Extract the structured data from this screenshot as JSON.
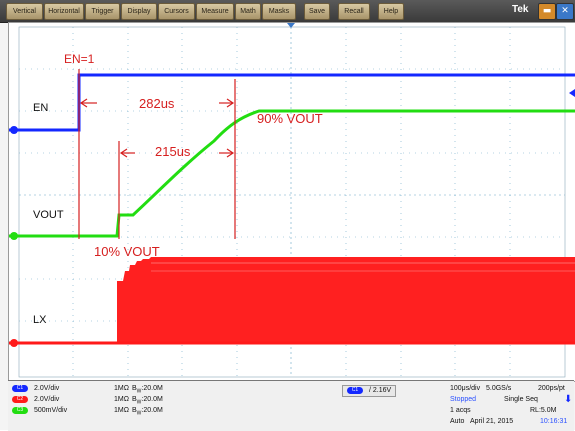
{
  "menu": [
    "Vertical",
    "Horizontal",
    "Trigger",
    "Display",
    "Cursors",
    "Measure",
    "Math",
    "Masks",
    "Save",
    "Recall",
    "Help"
  ],
  "brand": "Tek",
  "icons": [
    "minimize-icon",
    "close-x-icon"
  ],
  "annotations": {
    "en1": "EN=1",
    "t282": "282us",
    "t215": "215us",
    "v90": "90% VOUT",
    "v10": "10% VOUT"
  },
  "channel_labels": {
    "en": "EN",
    "vout": "VOUT",
    "lx": "LX"
  },
  "channels": [
    {
      "badge": "C1",
      "scale": "2.0V/div",
      "imp": "1MΩ",
      "bw": "20.0M",
      "color": "#1428ff"
    },
    {
      "badge": "C2",
      "scale": "2.0V/div",
      "imp": "1MΩ",
      "bw": "20.0M",
      "color": "#ff1a1a"
    },
    {
      "badge": "C3",
      "scale": "500mV/div",
      "imp": "1MΩ",
      "bw": "20.0M",
      "color": "#22dd11"
    }
  ],
  "bw_prefix": "B",
  "bw_sub": "W",
  "trigger": {
    "badge": "C1",
    "slope": "/",
    "level": "2.16V"
  },
  "acq": {
    "timebase": "100μs/div",
    "rate": "5.0GS/s",
    "res": "200ps/pt",
    "state": "Stopped",
    "mode": "Single Seq",
    "acqs": "1 acqs",
    "rl": "RL:5.0M",
    "trig_mode": "Auto",
    "date": "April 21, 2015",
    "time": "10:16:31"
  },
  "colors": {
    "ch1": "#1428ff",
    "ch2": "#ff1a1a",
    "ch3": "#22dd11",
    "annot": "#d62020",
    "grid": "#6aa8c8"
  }
}
